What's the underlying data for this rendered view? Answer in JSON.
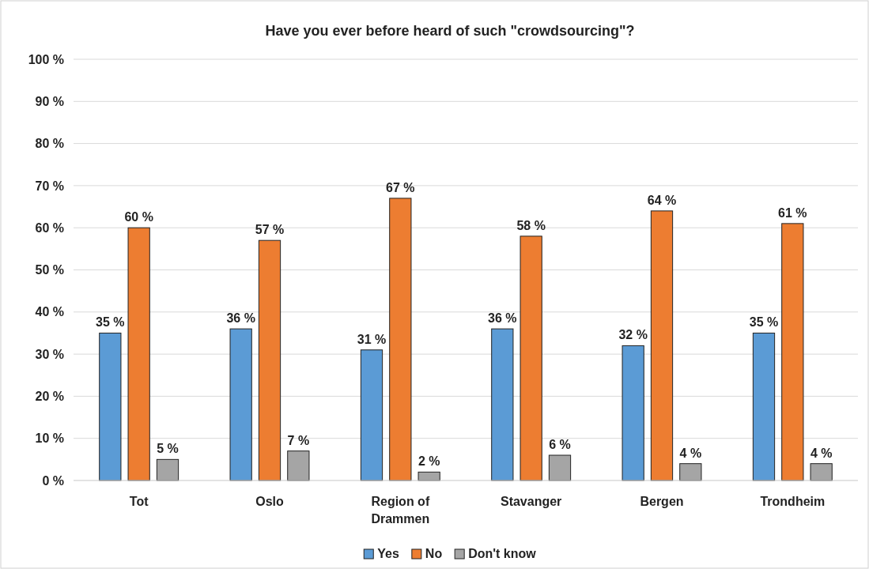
{
  "chart_data": {
    "type": "bar",
    "title": "Have you ever before heard of such \"crowdsourcing\"?",
    "categories": [
      "Tot",
      "Oslo",
      "Region of Drammen",
      "Stavanger",
      "Bergen",
      "Trondheim"
    ],
    "series": [
      {
        "name": "Yes",
        "color": "#5b9bd5",
        "values": [
          35,
          36,
          31,
          36,
          32,
          35
        ],
        "value_labels": [
          "35 %",
          "36 %",
          "31 %",
          "36 %",
          "32 %",
          "35 %"
        ]
      },
      {
        "name": "No",
        "color": "#ed7d31",
        "values": [
          60,
          57,
          67,
          58,
          64,
          61
        ],
        "value_labels": [
          "60 %",
          "57 %",
          "67 %",
          "58 %",
          "64 %",
          "61 %"
        ]
      },
      {
        "name": "Don't know",
        "color": "#a5a5a5",
        "values": [
          5,
          7,
          2,
          6,
          4,
          4
        ],
        "value_labels": [
          "5 %",
          "7 %",
          "2 %",
          "6 %",
          "4 %",
          "4 %"
        ]
      }
    ],
    "ylim": [
      0,
      100
    ],
    "yticks": [
      {
        "value": 0,
        "label": "0 %"
      },
      {
        "value": 10,
        "label": "10 %"
      },
      {
        "value": 20,
        "label": "20 %"
      },
      {
        "value": 30,
        "label": "30 %"
      },
      {
        "value": 40,
        "label": "40 %"
      },
      {
        "value": 50,
        "label": "50 %"
      },
      {
        "value": 60,
        "label": "60 %"
      },
      {
        "value": 70,
        "label": "70 %"
      },
      {
        "value": 80,
        "label": "80 %"
      },
      {
        "value": 90,
        "label": "90 %"
      },
      {
        "value": 100,
        "label": "100 %"
      }
    ],
    "grid": "y",
    "legend": "bottom"
  }
}
